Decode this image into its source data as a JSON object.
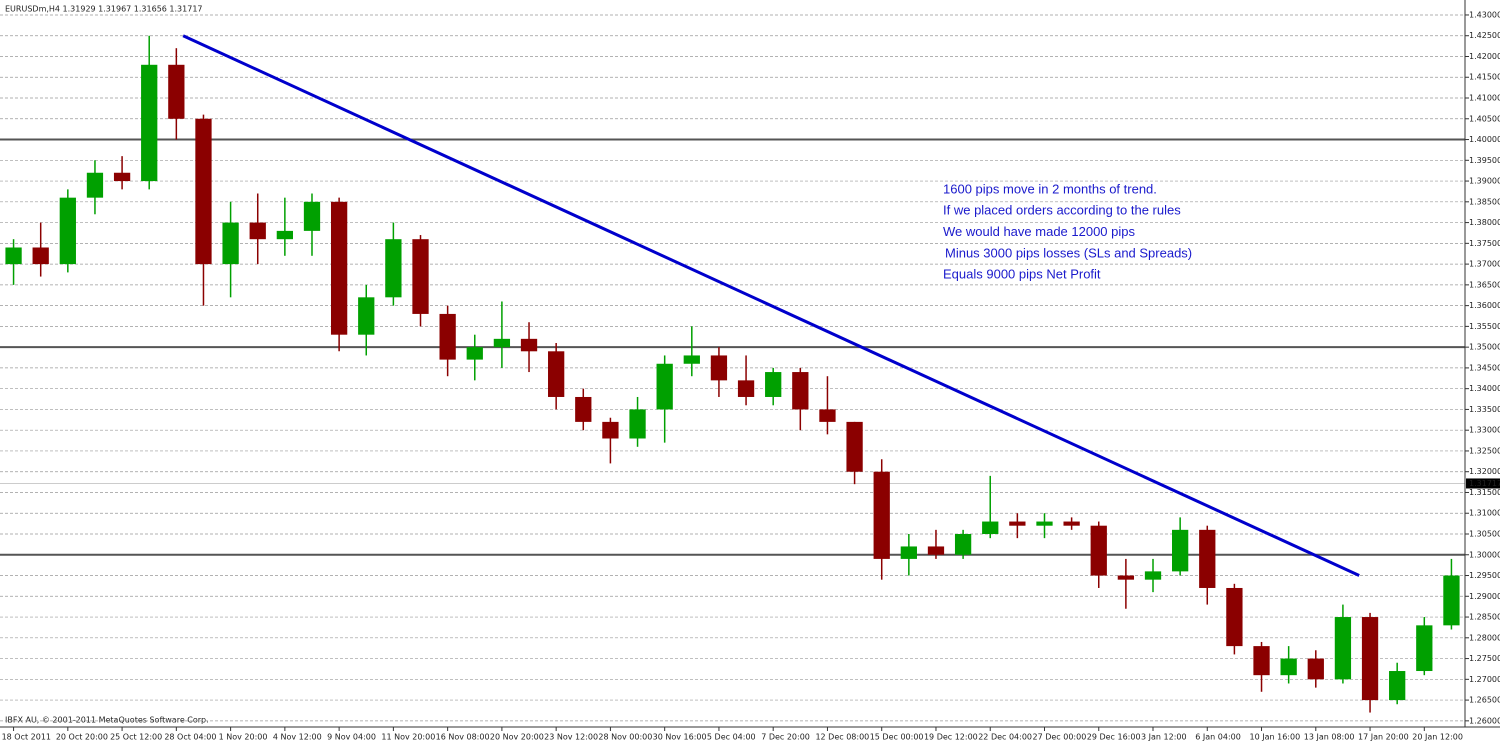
{
  "chart_data": {
    "type": "candlestick",
    "title": "EURUSDm,H4  1.31929 1.31967 1.31656 1.31717",
    "watermark": "IBFX AU, © 2001-2011 MetaQuotes Software Corp.",
    "categories": [
      "18 Oct 2011",
      null,
      "20 Oct 20:00",
      null,
      "25 Oct 12:00",
      null,
      "28 Oct 04:00",
      null,
      "1 Nov 20:00",
      null,
      "4 Nov 12:00",
      null,
      "9 Nov 04:00",
      null,
      "11 Nov 20:00",
      null,
      "16 Nov 08:00",
      null,
      "20 Nov 20:00",
      null,
      "23 Nov 12:00",
      null,
      "28 Nov 00:00",
      null,
      "30 Nov 16:00",
      null,
      "5 Dec 04:00",
      null,
      "7 Dec 20:00",
      null,
      "12 Dec 08:00",
      null,
      "15 Dec 00:00",
      null,
      "19 Dec 12:00",
      null,
      "22 Dec 04:00",
      null,
      "27 Dec 00:00",
      null,
      "29 Dec 16:00",
      null,
      "3 Jan 12:00",
      null,
      "6 Jan 04:00",
      null,
      "10 Jan 16:00",
      null,
      "13 Jan 08:00",
      null,
      "17 Jan 20:00",
      null,
      "20 Jan 12:00",
      null
    ],
    "open": [
      1.37,
      1.374,
      1.37,
      1.386,
      1.392,
      1.39,
      1.418,
      1.405,
      1.37,
      1.38,
      1.376,
      1.378,
      1.385,
      1.353,
      1.362,
      1.376,
      1.358,
      1.347,
      1.35,
      1.352,
      1.349,
      1.338,
      1.332,
      1.328,
      1.335,
      1.346,
      1.348,
      1.342,
      1.338,
      1.344,
      1.335,
      1.332,
      1.32,
      1.299,
      1.302,
      1.3,
      1.305,
      1.308,
      1.307,
      1.308,
      1.307,
      1.295,
      1.294,
      1.296,
      1.306,
      1.292,
      1.278,
      1.271,
      1.275,
      1.27,
      1.285,
      1.265,
      1.272,
      1.283
    ],
    "high": [
      1.376,
      1.38,
      1.388,
      1.395,
      1.396,
      1.425,
      1.422,
      1.406,
      1.385,
      1.387,
      1.386,
      1.387,
      1.386,
      1.365,
      1.38,
      1.377,
      1.36,
      1.353,
      1.361,
      1.356,
      1.351,
      1.34,
      1.333,
      1.338,
      1.348,
      1.355,
      1.35,
      1.348,
      1.345,
      1.345,
      1.343,
      1.332,
      1.323,
      1.305,
      1.306,
      1.306,
      1.319,
      1.31,
      1.31,
      1.309,
      1.308,
      1.299,
      1.299,
      1.309,
      1.307,
      1.293,
      1.279,
      1.278,
      1.277,
      1.288,
      1.286,
      1.274,
      1.285,
      1.299
    ],
    "low": [
      1.365,
      1.367,
      1.368,
      1.382,
      1.388,
      1.388,
      1.4,
      1.36,
      1.362,
      1.37,
      1.372,
      1.372,
      1.349,
      1.348,
      1.36,
      1.355,
      1.343,
      1.342,
      1.345,
      1.344,
      1.335,
      1.33,
      1.322,
      1.326,
      1.327,
      1.343,
      1.338,
      1.336,
      1.336,
      1.33,
      1.329,
      1.317,
      1.294,
      1.295,
      1.299,
      1.299,
      1.304,
      1.304,
      1.304,
      1.306,
      1.292,
      1.287,
      1.291,
      1.295,
      1.288,
      1.276,
      1.267,
      1.269,
      1.268,
      1.269,
      1.262,
      1.264,
      1.271,
      1.282
    ],
    "close": [
      1.374,
      1.37,
      1.386,
      1.392,
      1.39,
      1.418,
      1.405,
      1.37,
      1.38,
      1.376,
      1.378,
      1.385,
      1.353,
      1.362,
      1.376,
      1.358,
      1.347,
      1.35,
      1.352,
      1.349,
      1.338,
      1.332,
      1.328,
      1.335,
      1.346,
      1.348,
      1.342,
      1.338,
      1.344,
      1.335,
      1.332,
      1.32,
      1.299,
      1.302,
      1.3,
      1.305,
      1.308,
      1.307,
      1.308,
      1.307,
      1.295,
      1.294,
      1.296,
      1.306,
      1.292,
      1.278,
      1.271,
      1.275,
      1.27,
      1.285,
      1.265,
      1.272,
      1.283,
      1.295
    ],
    "up_color": "#00a000",
    "down_color": "#8b0000",
    "ylim": [
      1.259,
      1.4324
    ],
    "yticks": [
      {
        "value": 1.26,
        "label": "1.26000"
      },
      {
        "value": 1.265,
        "label": "1.26500"
      },
      {
        "value": 1.27,
        "label": "1.27000"
      },
      {
        "value": 1.275,
        "label": "1.27500"
      },
      {
        "value": 1.28,
        "label": "1.28000"
      },
      {
        "value": 1.285,
        "label": "1.28500"
      },
      {
        "value": 1.29,
        "label": "1.29000"
      },
      {
        "value": 1.295,
        "label": "1.29500"
      },
      {
        "value": 1.3,
        "label": "1.30000"
      },
      {
        "value": 1.305,
        "label": "1.30500"
      },
      {
        "value": 1.31,
        "label": "1.31000"
      },
      {
        "value": 1.315,
        "label": "1.31500"
      },
      {
        "value": 1.32,
        "label": "1.32000"
      },
      {
        "value": 1.325,
        "label": "1.32500"
      },
      {
        "value": 1.33,
        "label": "1.33000"
      },
      {
        "value": 1.335,
        "label": "1.33500"
      },
      {
        "value": 1.34,
        "label": "1.34000"
      },
      {
        "value": 1.345,
        "label": "1.34500"
      },
      {
        "value": 1.35,
        "label": "1.35000"
      },
      {
        "value": 1.355,
        "label": "1.35500"
      },
      {
        "value": 1.36,
        "label": "1.36000"
      },
      {
        "value": 1.365,
        "label": "1.36500"
      },
      {
        "value": 1.37,
        "label": "1.37000"
      },
      {
        "value": 1.375,
        "label": "1.37500"
      },
      {
        "value": 1.38,
        "label": "1.38000"
      },
      {
        "value": 1.385,
        "label": "1.38500"
      },
      {
        "value": 1.39,
        "label": "1.39000"
      },
      {
        "value": 1.395,
        "label": "1.39500"
      },
      {
        "value": 1.4,
        "label": "1.40000"
      },
      {
        "value": 1.405,
        "label": "1.40500"
      },
      {
        "value": 1.41,
        "label": "1.41000"
      },
      {
        "value": 1.415,
        "label": "1.41500"
      },
      {
        "value": 1.42,
        "label": "1.42000"
      },
      {
        "value": 1.425,
        "label": "1.42500"
      },
      {
        "value": 1.43,
        "label": "1.43000"
      }
    ],
    "grid": true,
    "current_price": {
      "value": 1.31717,
      "label": "1.31717"
    },
    "levels": [
      1.4,
      1.35,
      1.3
    ],
    "level_color": "#555555",
    "trend_line": {
      "x": [
        6.25,
        49.6
      ],
      "y": [
        1.425,
        1.295
      ],
      "color": "#0000cc"
    },
    "annotation_color": "#1a1acc",
    "annotations": [
      "1600 pips move in 2 months of trend.",
      "If we placed orders according to the rules",
      "We would have made 12000 pips",
      "Minus 3000 pips losses (SLs and Spreads)",
      "Equals 9000 pips Net Profit"
    ]
  }
}
